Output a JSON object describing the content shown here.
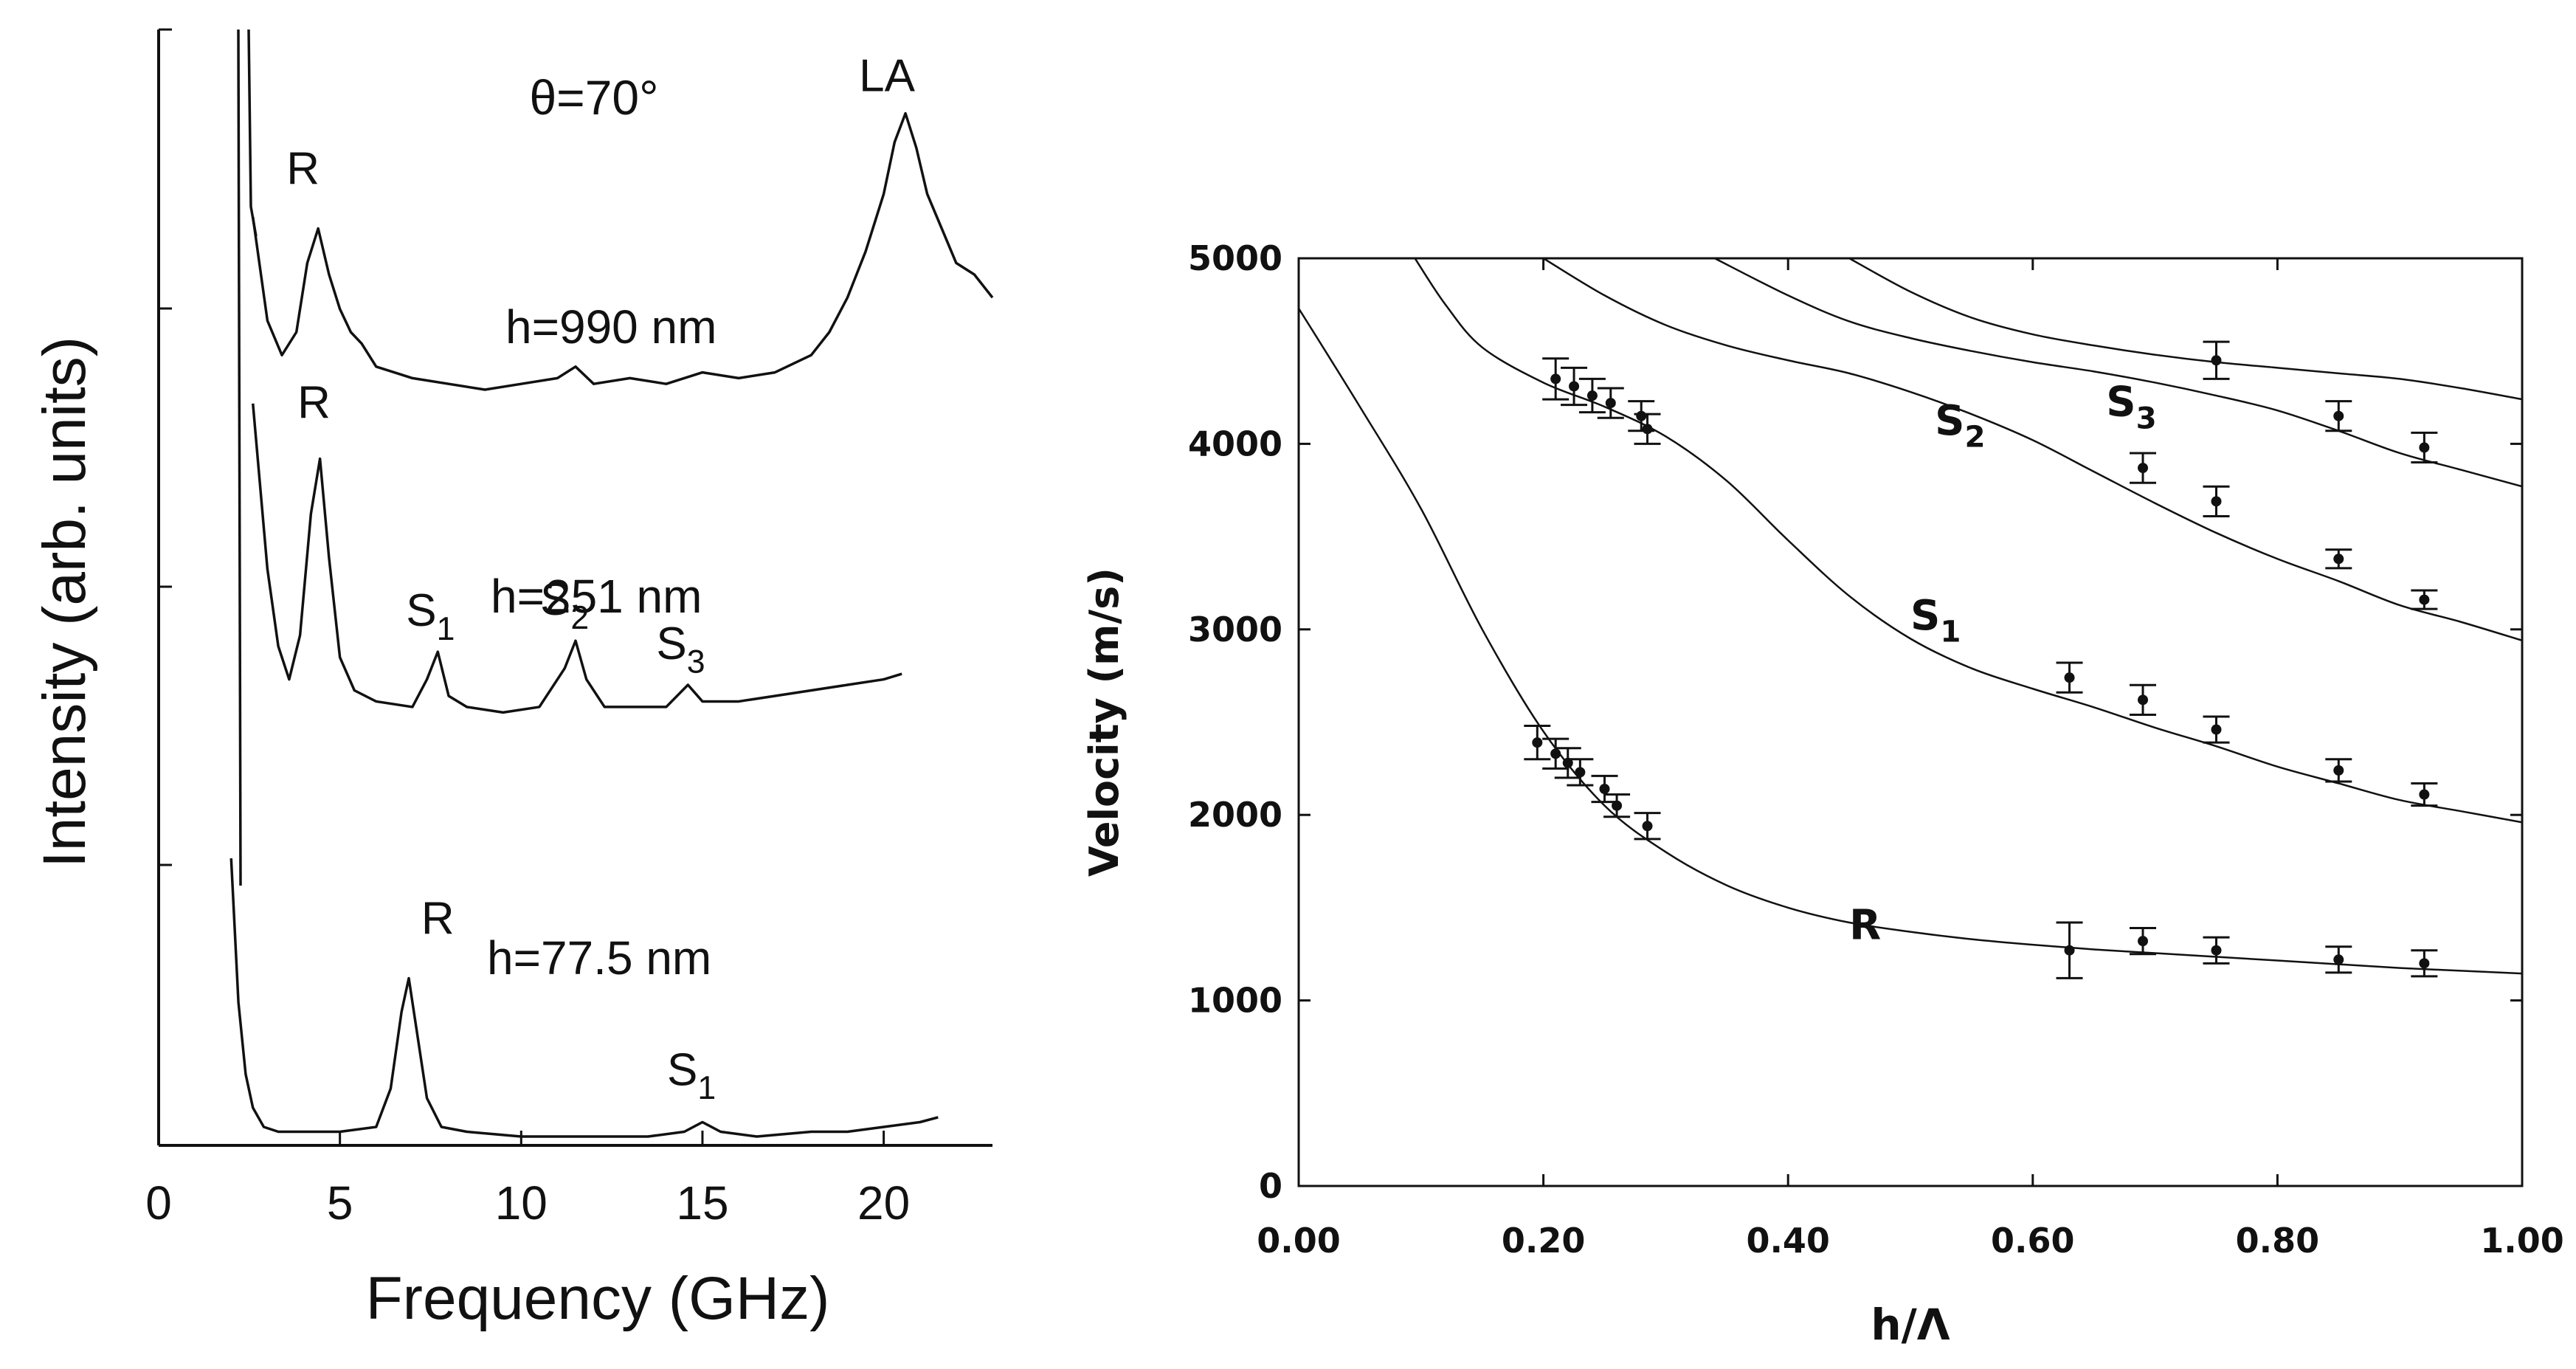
{
  "colors": {
    "ink": "#111111",
    "background": "#ffffff"
  },
  "chart_data": [
    {
      "type": "line",
      "title": "",
      "xlabel": "Frequency (GHz)",
      "ylabel": "Intensity (arb. units)",
      "xlim": [
        0,
        23
      ],
      "x_ticks": [
        0,
        5,
        10,
        15,
        20
      ],
      "x_tick_labels": [
        "0",
        "5",
        "10",
        "15",
        "20"
      ],
      "annotation": "θ=70°",
      "series": [
        {
          "name": "h=990 nm",
          "x": [
            2.6,
            3.0,
            3.4,
            3.8,
            4.1,
            4.4,
            4.7,
            5.0,
            5.3,
            5.6,
            6.0,
            7.0,
            8.0,
            9.0,
            10.0,
            11.0,
            11.5,
            12.0,
            13.0,
            14.0,
            15.0,
            16.0,
            17.0,
            18.0,
            18.5,
            19.0,
            19.5,
            20.0,
            20.3,
            20.6,
            20.9,
            21.2,
            21.6,
            22.0,
            22.5,
            23.0
          ],
          "values": [
            0.7,
            0.52,
            0.46,
            0.5,
            0.62,
            0.68,
            0.6,
            0.54,
            0.5,
            0.48,
            0.44,
            0.42,
            0.41,
            0.4,
            0.41,
            0.42,
            0.44,
            0.41,
            0.42,
            0.41,
            0.43,
            0.42,
            0.43,
            0.46,
            0.5,
            0.56,
            0.64,
            0.74,
            0.83,
            0.88,
            0.82,
            0.74,
            0.68,
            0.62,
            0.6,
            0.56
          ],
          "peak_labels": [
            {
              "text": "R",
              "x": 4.3
            },
            {
              "text": "LA",
              "x": 20.5
            }
          ]
        },
        {
          "name": "h=251 nm",
          "x": [
            2.6,
            3.0,
            3.3,
            3.6,
            3.9,
            4.2,
            4.45,
            4.7,
            5.0,
            5.4,
            6.0,
            7.0,
            7.4,
            7.7,
            8.0,
            8.5,
            9.5,
            10.5,
            11.2,
            11.5,
            11.8,
            12.3,
            13.0,
            14.0,
            14.6,
            15.0,
            16.0,
            17.0,
            18.0,
            19.0,
            20.0,
            20.5
          ],
          "values": [
            0.72,
            0.42,
            0.28,
            0.22,
            0.3,
            0.52,
            0.62,
            0.44,
            0.26,
            0.2,
            0.18,
            0.17,
            0.22,
            0.27,
            0.19,
            0.17,
            0.16,
            0.17,
            0.24,
            0.29,
            0.22,
            0.17,
            0.17,
            0.17,
            0.21,
            0.18,
            0.18,
            0.19,
            0.2,
            0.21,
            0.22,
            0.23
          ],
          "peak_labels": [
            {
              "text": "R",
              "x": 4.4
            },
            {
              "text": "S1",
              "x": 7.7
            },
            {
              "text": "S2",
              "x": 11.5
            },
            {
              "text": "S3",
              "x": 14.5
            }
          ]
        },
        {
          "name": "h=77.5 nm",
          "x": [
            2.0,
            2.2,
            2.4,
            2.6,
            2.9,
            3.3,
            4.0,
            5.0,
            6.0,
            6.4,
            6.7,
            6.9,
            7.1,
            7.4,
            7.8,
            8.5,
            10.0,
            12.0,
            13.5,
            14.5,
            15.0,
            15.5,
            16.5,
            18.0,
            19.0,
            20.0,
            21.0,
            21.5
          ],
          "values": [
            0.6,
            0.3,
            0.15,
            0.08,
            0.04,
            0.03,
            0.03,
            0.03,
            0.04,
            0.12,
            0.28,
            0.35,
            0.25,
            0.1,
            0.04,
            0.03,
            0.02,
            0.02,
            0.02,
            0.03,
            0.05,
            0.03,
            0.02,
            0.03,
            0.03,
            0.04,
            0.05,
            0.06
          ],
          "peak_labels": [
            {
              "text": "R",
              "x": 7.0
            },
            {
              "text": "S1",
              "x": 15.0
            }
          ]
        }
      ]
    },
    {
      "type": "line",
      "title": "",
      "xlabel": "h/Λ",
      "ylabel": "Velocity (m/s)",
      "xlim": [
        0,
        1.0
      ],
      "ylim": [
        0,
        5000
      ],
      "x_ticks": [
        0,
        0.2,
        0.4,
        0.6,
        0.8,
        1.0
      ],
      "x_tick_labels": [
        "0.00",
        "0.20",
        "0.40",
        "0.60",
        "0.80",
        "1.00"
      ],
      "y_ticks": [
        0,
        1000,
        2000,
        3000,
        4000,
        5000
      ],
      "y_tick_labels": [
        "0",
        "1000",
        "2000",
        "3000",
        "4000",
        "5000"
      ],
      "series": [
        {
          "name": "R",
          "curve": {
            "x": [
              0.0,
              0.05,
              0.1,
              0.15,
              0.2,
              0.25,
              0.3,
              0.35,
              0.4,
              0.45,
              0.5,
              0.55,
              0.6,
              0.65,
              0.7,
              0.75,
              0.8,
              0.85,
              0.9,
              0.95,
              1.0
            ],
            "values": [
              4730,
              4200,
              3650,
              3000,
              2450,
              2050,
              1800,
              1620,
              1500,
              1420,
              1370,
              1330,
              1300,
              1275,
              1255,
              1235,
              1215,
              1195,
              1175,
              1160,
              1145
            ]
          },
          "points": {
            "x": [
              0.195,
              0.21,
              0.22,
              0.23,
              0.25,
              0.26,
              0.285,
              0.63,
              0.69,
              0.75,
              0.85,
              0.92
            ],
            "values": [
              2390,
              2330,
              2280,
              2230,
              2140,
              2050,
              1940,
              1270,
              1320,
              1270,
              1220,
              1200
            ],
            "errors": [
              90,
              80,
              80,
              70,
              70,
              60,
              70,
              150,
              70,
              70,
              70,
              70
            ]
          }
        },
        {
          "name": "S1",
          "curve": {
            "x": [
              0.095,
              0.12,
              0.15,
              0.2,
              0.25,
              0.3,
              0.35,
              0.4,
              0.45,
              0.5,
              0.55,
              0.6,
              0.65,
              0.7,
              0.75,
              0.8,
              0.85,
              0.9,
              0.95,
              1.0
            ],
            "values": [
              5000,
              4750,
              4520,
              4330,
              4200,
              4040,
              3800,
              3480,
              3180,
              2950,
              2790,
              2680,
              2580,
              2470,
              2370,
              2260,
              2170,
              2080,
              2020,
              1960
            ]
          },
          "points": {
            "x": [
              0.21,
              0.225,
              0.24,
              0.255,
              0.28,
              0.285,
              0.63,
              0.69,
              0.75,
              0.85,
              0.92
            ],
            "values": [
              4350,
              4310,
              4260,
              4220,
              4150,
              4080,
              2740,
              2620,
              2460,
              2240,
              2110
            ],
            "errors": [
              110,
              100,
              90,
              80,
              80,
              80,
              80,
              80,
              70,
              60,
              60
            ]
          }
        },
        {
          "name": "S2",
          "curve": {
            "x": [
              0.2,
              0.25,
              0.3,
              0.35,
              0.4,
              0.45,
              0.5,
              0.55,
              0.6,
              0.65,
              0.7,
              0.75,
              0.8,
              0.85,
              0.9,
              0.95,
              1.0
            ],
            "values": [
              5000,
              4800,
              4640,
              4530,
              4450,
              4380,
              4280,
              4160,
              4020,
              3850,
              3680,
              3520,
              3380,
              3260,
              3130,
              3040,
              2940
            ]
          },
          "points": {
            "x": [
              0.69,
              0.75,
              0.85,
              0.92
            ],
            "values": [
              3870,
              3690,
              3380,
              3160
            ],
            "errors": [
              80,
              80,
              50,
              50
            ]
          }
        },
        {
          "name": "S3",
          "curve": {
            "x": [
              0.34,
              0.4,
              0.45,
              0.5,
              0.55,
              0.6,
              0.65,
              0.7,
              0.75,
              0.8,
              0.85,
              0.9,
              0.95,
              1.0
            ],
            "values": [
              5000,
              4800,
              4660,
              4570,
              4500,
              4440,
              4390,
              4330,
              4260,
              4180,
              4070,
              3950,
              3860,
              3770
            ]
          },
          "points": {
            "x": [
              0.85,
              0.92
            ],
            "values": [
              4150,
              3980
            ],
            "errors": [
              80,
              80
            ]
          }
        },
        {
          "name": "",
          "curve": {
            "x": [
              0.45,
              0.5,
              0.55,
              0.6,
              0.65,
              0.7,
              0.75,
              0.8,
              0.85,
              0.9,
              0.95,
              1.0
            ],
            "values": [
              5000,
              4820,
              4680,
              4590,
              4530,
              4480,
              4440,
              4410,
              4380,
              4350,
              4300,
              4240
            ]
          },
          "points": {
            "x": [
              0.75
            ],
            "values": [
              4450
            ],
            "errors": [
              100
            ]
          }
        }
      ],
      "curve_labels": [
        {
          "text": "R",
          "x": 0.45,
          "y": 1330
        },
        {
          "text": "S1",
          "x": 0.5,
          "y": 3000
        },
        {
          "text": "S2",
          "x": 0.52,
          "y": 4050
        },
        {
          "text": "S3",
          "x": 0.66,
          "y": 4150
        }
      ]
    }
  ]
}
